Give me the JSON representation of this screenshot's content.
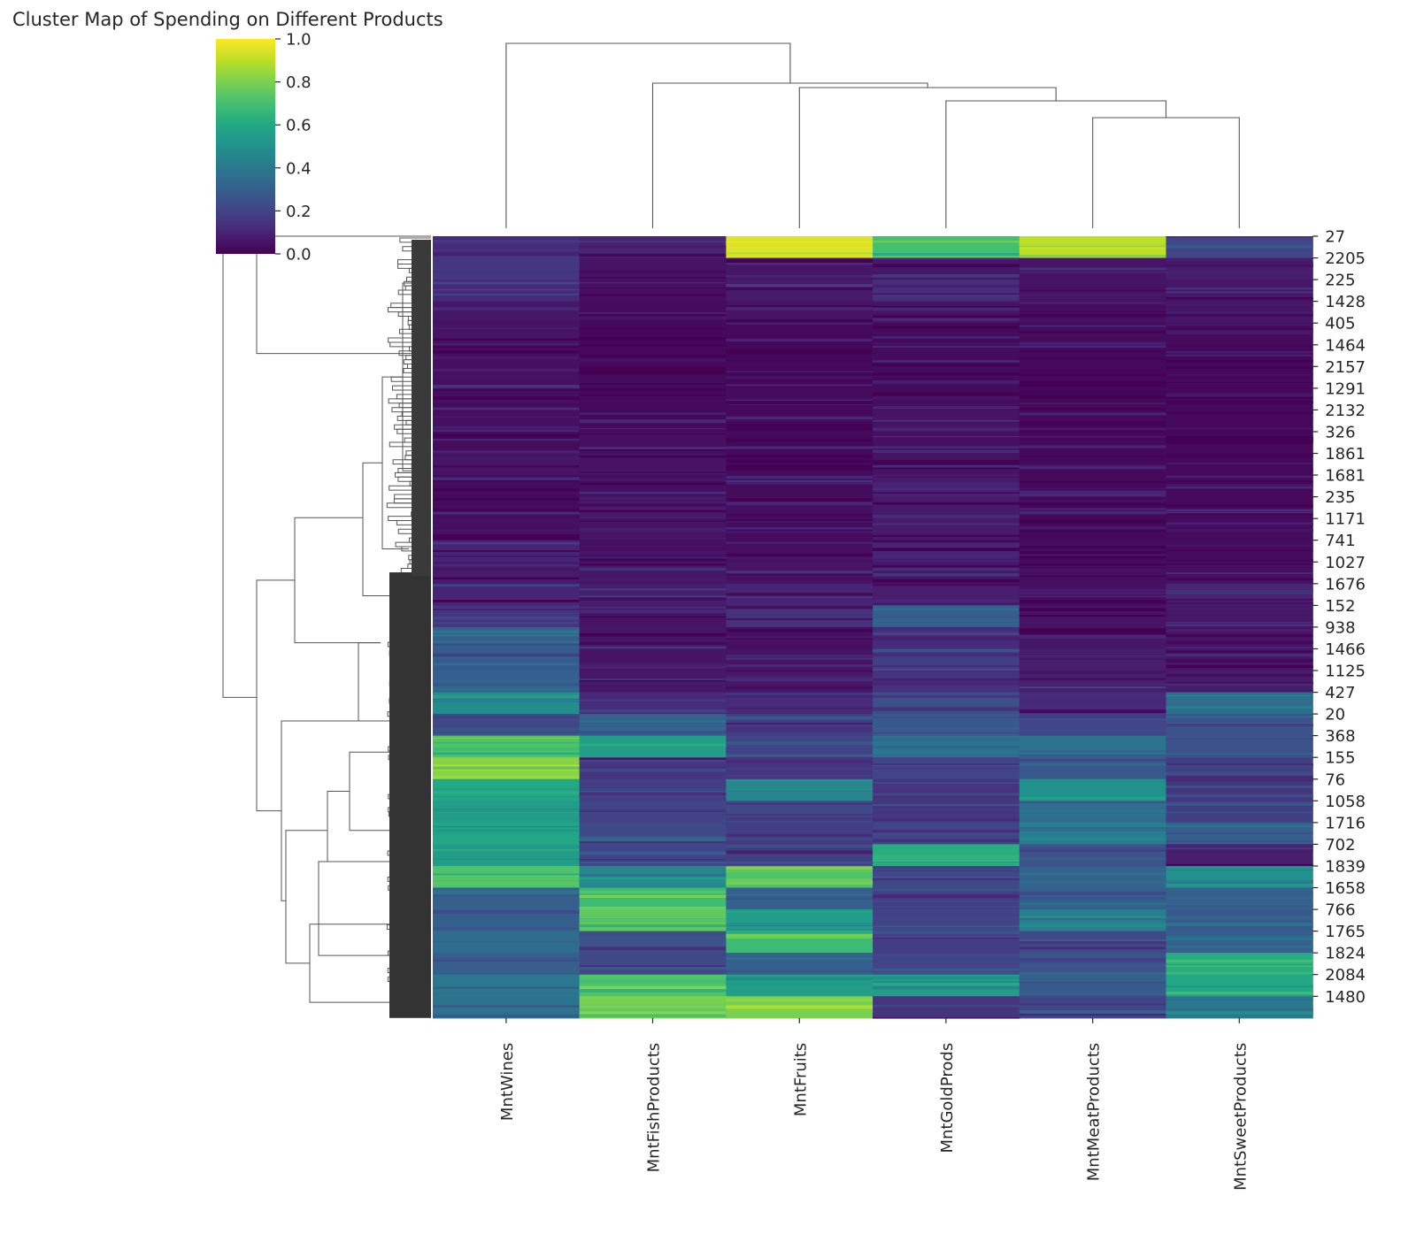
{
  "chart_data": {
    "type": "heatmap",
    "subtype": "clustermap",
    "title": "Cluster Map of Spending on Different Products",
    "colormap": "viridis",
    "colorbar": {
      "min": 0.0,
      "max": 1.0,
      "ticks": [
        "0.0",
        "0.2",
        "0.4",
        "0.6",
        "0.8",
        "1.0"
      ]
    },
    "columns": [
      "MntWines",
      "MntFishProducts",
      "MntFruits",
      "MntGoldProds",
      "MntMeatProducts",
      "MntSweetProducts"
    ],
    "row_tick_labels": [
      "27",
      "2205",
      "225",
      "1428",
      "405",
      "1464",
      "2157",
      "1291",
      "2132",
      "326",
      "1861",
      "1681",
      "235",
      "1171",
      "741",
      "1027",
      "1676",
      "152",
      "938",
      "1466",
      "1125",
      "427",
      "20",
      "368",
      "155",
      "76",
      "1058",
      "1716",
      "702",
      "1839",
      "1658",
      "766",
      "1765",
      "1824",
      "2084",
      "1480"
    ],
    "segments": [
      {
        "rows": [
          0,
          1
        ],
        "values": [
          0.12,
          0.1,
          0.95,
          0.7,
          0.9,
          0.2
        ]
      },
      {
        "rows": [
          1,
          2
        ],
        "values": [
          0.16,
          0.05,
          0.06,
          0.06,
          0.05,
          0.08
        ]
      },
      {
        "rows": [
          2,
          3
        ],
        "values": [
          0.12,
          0.04,
          0.07,
          0.13,
          0.05,
          0.06
        ]
      },
      {
        "rows": [
          3,
          4
        ],
        "values": [
          0.06,
          0.03,
          0.05,
          0.05,
          0.04,
          0.06
        ]
      },
      {
        "rows": [
          4,
          5
        ],
        "values": [
          0.05,
          0.02,
          0.02,
          0.02,
          0.03,
          0.03
        ]
      },
      {
        "rows": [
          5,
          6
        ],
        "values": [
          0.04,
          0.02,
          0.02,
          0.03,
          0.02,
          0.02
        ]
      },
      {
        "rows": [
          6,
          7
        ],
        "values": [
          0.04,
          0.03,
          0.02,
          0.03,
          0.02,
          0.02
        ]
      },
      {
        "rows": [
          7,
          8
        ],
        "values": [
          0.04,
          0.02,
          0.03,
          0.03,
          0.02,
          0.02
        ]
      },
      {
        "rows": [
          8,
          9
        ],
        "values": [
          0.04,
          0.02,
          0.02,
          0.05,
          0.02,
          0.02
        ]
      },
      {
        "rows": [
          9,
          10
        ],
        "values": [
          0.03,
          0.04,
          0.02,
          0.04,
          0.02,
          0.02
        ]
      },
      {
        "rows": [
          10,
          11
        ],
        "values": [
          0.05,
          0.05,
          0.03,
          0.05,
          0.02,
          0.02
        ]
      },
      {
        "rows": [
          11,
          12
        ],
        "values": [
          0.03,
          0.04,
          0.03,
          0.09,
          0.02,
          0.02
        ]
      },
      {
        "rows": [
          12,
          13
        ],
        "values": [
          0.03,
          0.07,
          0.04,
          0.07,
          0.02,
          0.02
        ]
      },
      {
        "rows": [
          13,
          14
        ],
        "values": [
          0.04,
          0.05,
          0.03,
          0.07,
          0.02,
          0.03
        ]
      },
      {
        "rows": [
          14,
          15
        ],
        "values": [
          0.1,
          0.04,
          0.04,
          0.1,
          0.03,
          0.03
        ]
      },
      {
        "rows": [
          15,
          16
        ],
        "values": [
          0.07,
          0.06,
          0.05,
          0.06,
          0.04,
          0.04
        ]
      },
      {
        "rows": [
          16,
          17
        ],
        "values": [
          0.1,
          0.08,
          0.1,
          0.08,
          0.04,
          0.1
        ]
      },
      {
        "rows": [
          17,
          18
        ],
        "values": [
          0.15,
          0.05,
          0.14,
          0.3,
          0.05,
          0.06
        ]
      },
      {
        "rows": [
          18,
          19
        ],
        "values": [
          0.3,
          0.06,
          0.04,
          0.12,
          0.06,
          0.05
        ]
      },
      {
        "rows": [
          19,
          20
        ],
        "values": [
          0.28,
          0.05,
          0.05,
          0.18,
          0.08,
          0.06
        ]
      },
      {
        "rows": [
          20,
          21
        ],
        "values": [
          0.3,
          0.06,
          0.06,
          0.14,
          0.08,
          0.08
        ]
      },
      {
        "rows": [
          21,
          22
        ],
        "values": [
          0.48,
          0.12,
          0.12,
          0.24,
          0.12,
          0.35
        ]
      },
      {
        "rows": [
          22,
          23
        ],
        "values": [
          0.22,
          0.3,
          0.18,
          0.28,
          0.2,
          0.26
        ]
      },
      {
        "rows": [
          23,
          24
        ],
        "values": [
          0.72,
          0.55,
          0.2,
          0.38,
          0.38,
          0.25
        ]
      },
      {
        "rows": [
          24,
          25
        ],
        "values": [
          0.82,
          0.15,
          0.15,
          0.2,
          0.28,
          0.18
        ]
      },
      {
        "rows": [
          25,
          26
        ],
        "values": [
          0.6,
          0.18,
          0.45,
          0.15,
          0.5,
          0.15
        ]
      },
      {
        "rows": [
          26,
          27
        ],
        "values": [
          0.55,
          0.2,
          0.22,
          0.16,
          0.35,
          0.18
        ]
      },
      {
        "rows": [
          27,
          28
        ],
        "values": [
          0.6,
          0.22,
          0.18,
          0.2,
          0.42,
          0.3
        ]
      },
      {
        "rows": [
          28,
          29
        ],
        "values": [
          0.55,
          0.2,
          0.18,
          0.62,
          0.25,
          0.08
        ]
      },
      {
        "rows": [
          29,
          30
        ],
        "values": [
          0.72,
          0.45,
          0.72,
          0.22,
          0.32,
          0.5
        ]
      },
      {
        "rows": [
          30,
          31
        ],
        "values": [
          0.3,
          0.68,
          0.3,
          0.18,
          0.3,
          0.3
        ]
      },
      {
        "rows": [
          31,
          32
        ],
        "values": [
          0.3,
          0.75,
          0.55,
          0.2,
          0.42,
          0.28
        ]
      },
      {
        "rows": [
          32,
          33
        ],
        "values": [
          0.35,
          0.25,
          0.68,
          0.18,
          0.22,
          0.3
        ]
      },
      {
        "rows": [
          33,
          34
        ],
        "values": [
          0.3,
          0.22,
          0.3,
          0.2,
          0.25,
          0.62
        ]
      },
      {
        "rows": [
          34,
          35
        ],
        "values": [
          0.4,
          0.72,
          0.55,
          0.55,
          0.28,
          0.6
        ]
      },
      {
        "rows": [
          35,
          36
        ],
        "values": [
          0.38,
          0.8,
          0.8,
          0.15,
          0.2,
          0.4
        ]
      }
    ]
  }
}
